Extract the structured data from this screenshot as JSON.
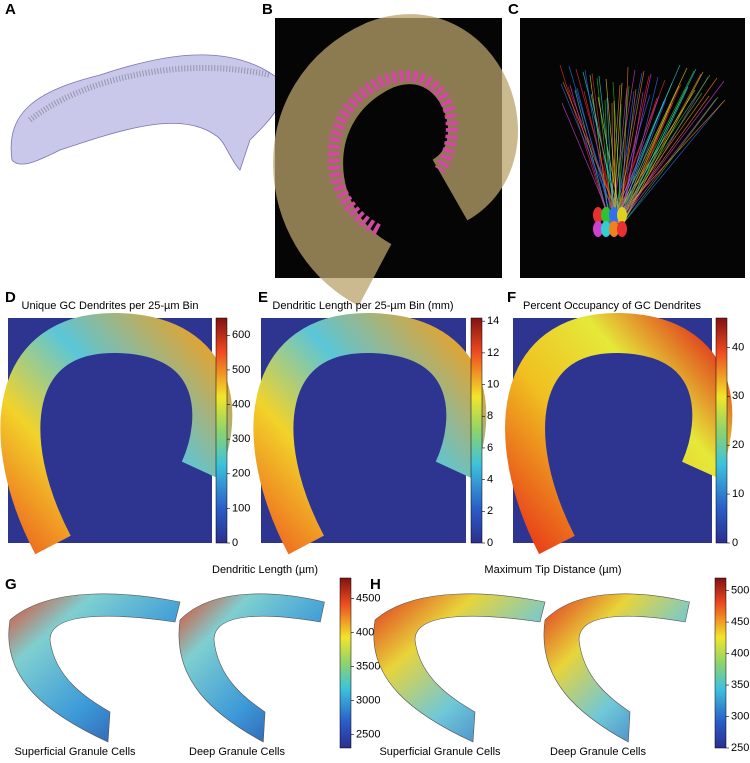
{
  "panels": [
    {
      "label": "A"
    },
    {
      "label": "B"
    },
    {
      "label": "C"
    },
    {
      "label": "D",
      "title": "Unique GC Dendrites per 25-µm Bin",
      "colorbar": {
        "lim": [
          0,
          650
        ],
        "ticks": [
          0,
          100,
          200,
          300,
          400,
          500,
          600
        ]
      }
    },
    {
      "label": "E",
      "title": "Dendritic Length per 25-µm Bin (mm)",
      "colorbar": {
        "lim": [
          0,
          14.2
        ],
        "ticks": [
          0,
          2,
          4,
          6,
          8,
          10,
          12,
          14
        ]
      }
    },
    {
      "label": "F",
      "title": "Percent Occupancy of GC Dendrites",
      "colorbar": {
        "lim": [
          0,
          46
        ],
        "ticks": [
          0,
          10,
          20,
          30,
          40
        ]
      }
    },
    {
      "label": "G",
      "title": "Dendritic Length (µm)",
      "captions": [
        "Superficial Granule Cells",
        "Deep Granule Cells"
      ],
      "colorbar": {
        "lim": [
          2300,
          4800
        ],
        "ticks": [
          2500,
          3000,
          3500,
          4000,
          4500
        ]
      }
    },
    {
      "label": "H",
      "title": "Maximum Tip Distance (µm)",
      "captions": [
        "Superficial Granule Cells",
        "Deep Granule Cells"
      ],
      "colorbar": {
        "lim": [
          250,
          520
        ],
        "ticks": [
          250,
          300,
          350,
          400,
          450,
          500
        ]
      }
    }
  ]
}
